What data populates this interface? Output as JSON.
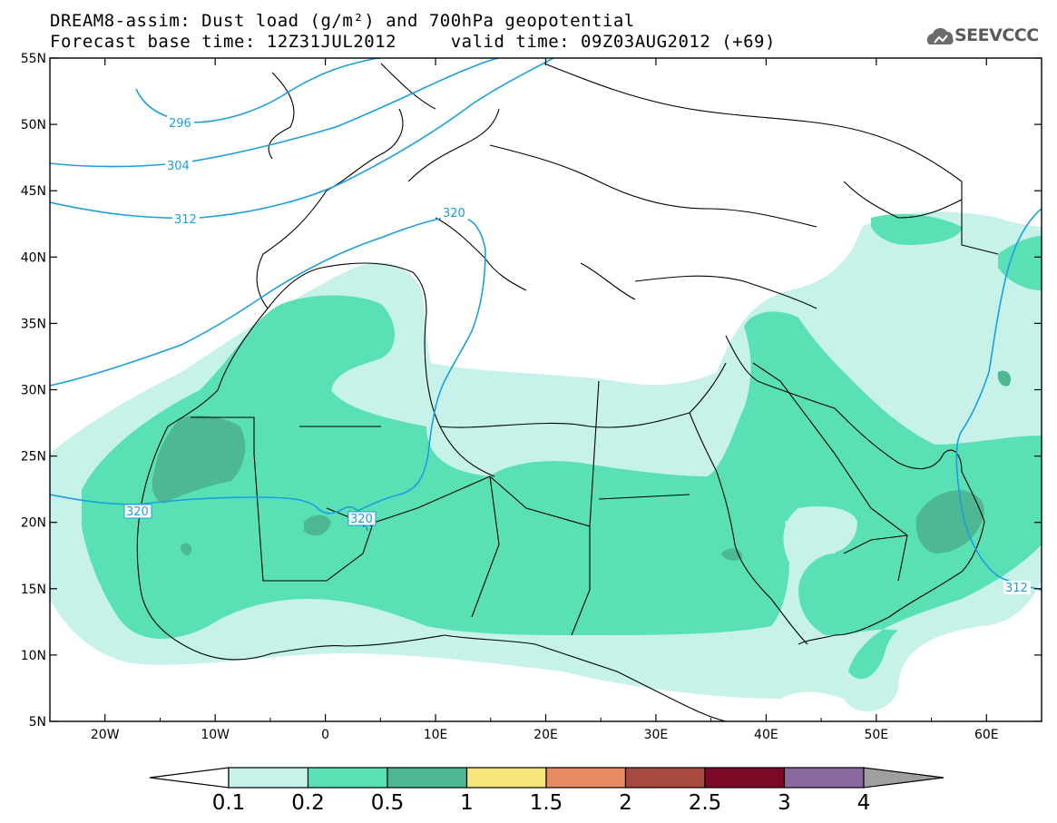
{
  "title_line1": "DREAM8-assim: Dust load (g/m²) and 700hPa geopotential",
  "title_line2": "Forecast base time: 12Z31JUL2012     valid time: 09Z03AUG2012 (+69)",
  "logo_text": "SEEVCCC",
  "map": {
    "lon_range": [
      -25,
      65
    ],
    "lat_range": [
      5,
      55
    ],
    "lon_labels": [
      "20W",
      "10W",
      "0",
      "10E",
      "20E",
      "30E",
      "40E",
      "50E",
      "60E"
    ],
    "lat_labels": [
      "55N",
      "50N",
      "45N",
      "40N",
      "35N",
      "30N",
      "25N",
      "20N",
      "15N",
      "10N",
      "5N"
    ]
  },
  "contours": {
    "units": "dam",
    "line_color": "#1a9fe0",
    "labels": [
      "296",
      "304",
      "312",
      "320",
      "320",
      "320",
      "312"
    ]
  },
  "colorbar": {
    "unit": "g/m²",
    "levels": [
      "0.1",
      "0.2",
      "0.5",
      "1",
      "1.5",
      "2",
      "2.5",
      "3",
      "4"
    ],
    "colors": [
      "#ffffff",
      "#c6f2ea",
      "#5ae0b5",
      "#4eb894",
      "#f5e67a",
      "#e68a62",
      "#a84a40",
      "#7a0a28",
      "#8a6a9e",
      "#a0a0a0"
    ]
  },
  "legend_shading": {
    "light": "#c6f2ea",
    "medium": "#5ae0b5",
    "dark": "#4eb894"
  }
}
